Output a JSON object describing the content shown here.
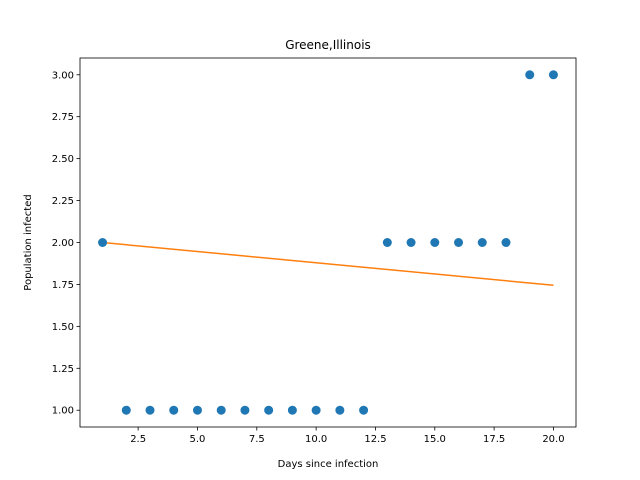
{
  "chart_data": {
    "type": "scatter",
    "title": "Greene,Illinois",
    "xlabel": "Days since infection",
    "ylabel": "Population infected",
    "xlim": [
      0.05,
      20.95
    ],
    "ylim": [
      0.9,
      3.1
    ],
    "grid": false,
    "xticks": [
      2.5,
      5.0,
      7.5,
      10.0,
      12.5,
      15.0,
      17.5,
      20.0
    ],
    "xtick_labels": [
      "2.5",
      "5.0",
      "7.5",
      "10.0",
      "12.5",
      "15.0",
      "17.5",
      "20.0"
    ],
    "yticks": [
      1.0,
      1.25,
      1.5,
      1.75,
      2.0,
      2.25,
      2.5,
      2.75,
      3.0
    ],
    "ytick_labels": [
      "1.00",
      "1.25",
      "1.50",
      "1.75",
      "2.00",
      "2.25",
      "2.50",
      "2.75",
      "3.00"
    ],
    "series": [
      {
        "type": "scatter",
        "color": "#1f77b4",
        "x": [
          1,
          2,
          3,
          4,
          5,
          6,
          7,
          8,
          9,
          10,
          11,
          12,
          13,
          14,
          15,
          16,
          17,
          18,
          19,
          20
        ],
        "y": [
          2,
          1,
          1,
          1,
          1,
          1,
          1,
          1,
          1,
          1,
          1,
          1,
          2,
          2,
          2,
          2,
          2,
          2,
          3,
          3
        ]
      },
      {
        "type": "line",
        "color": "#ff7f0e",
        "x": [
          1,
          20
        ],
        "y": [
          2.0,
          1.745
        ]
      }
    ]
  }
}
